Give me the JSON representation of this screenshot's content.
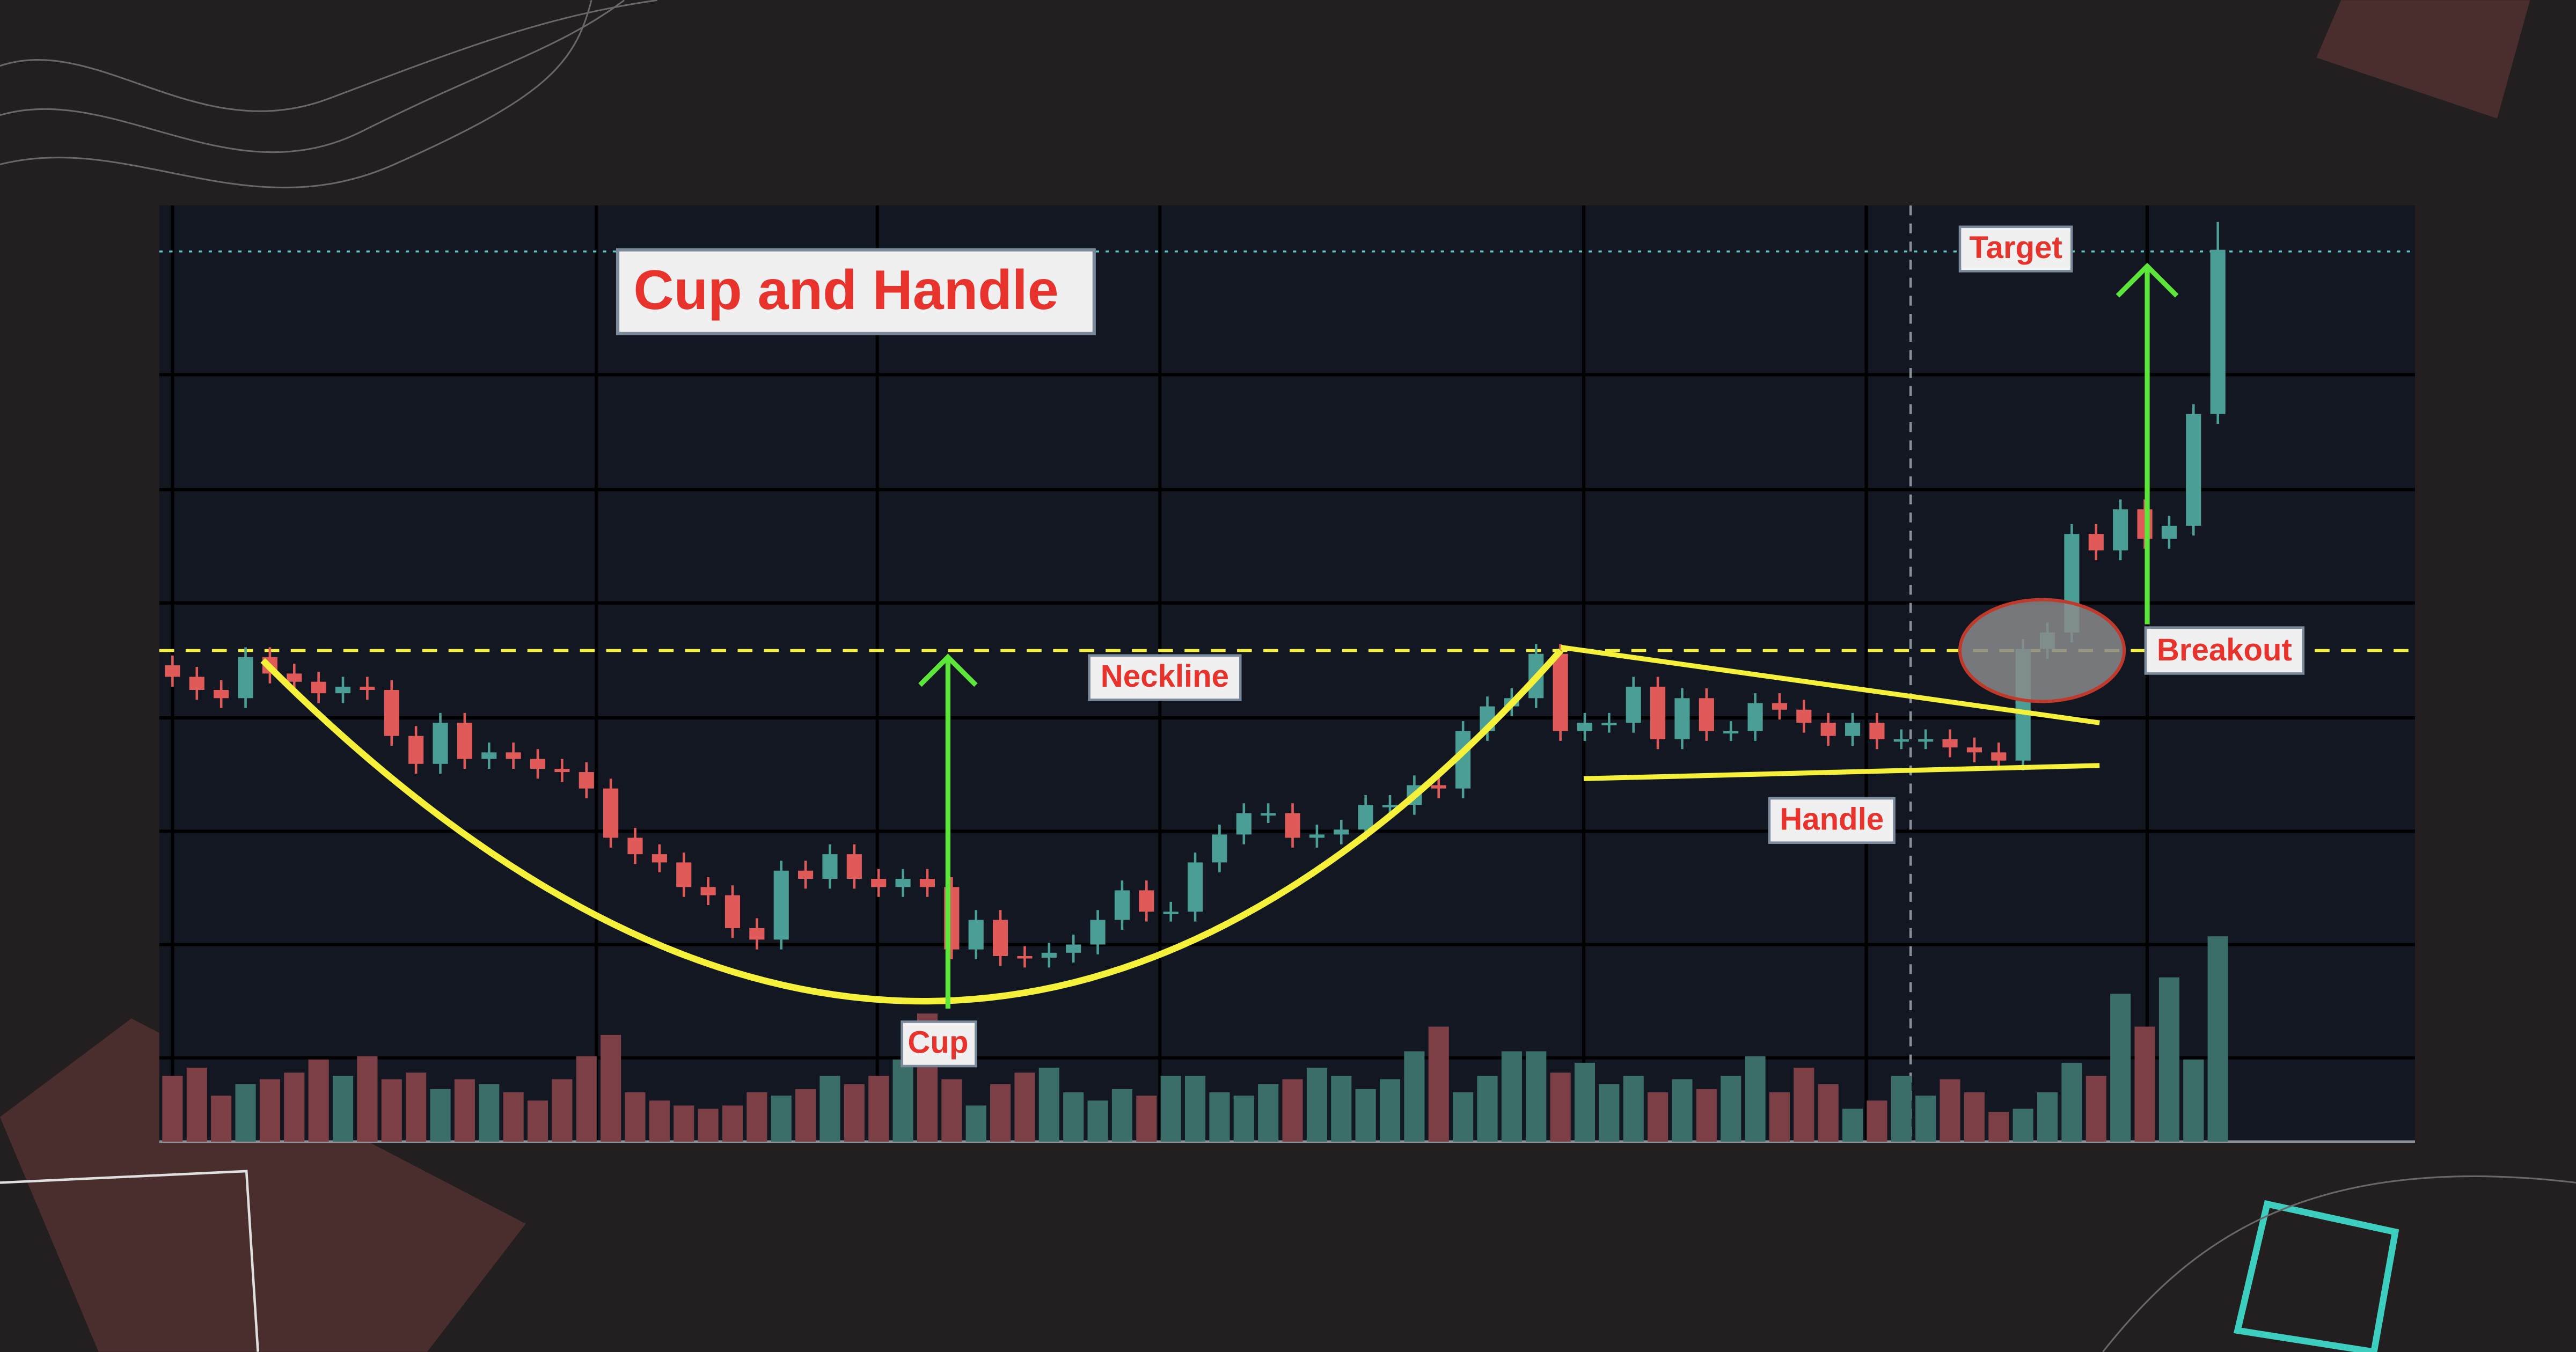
{
  "chart_data": {
    "type": "candlestick",
    "title": "Cup and Handle",
    "annotations": {
      "neckline": "Neckline",
      "cup": "Cup",
      "handle": "Handle",
      "breakout": "Breakout",
      "target": "Target"
    },
    "neckline": 299,
    "target": 542,
    "ylim": [
      0,
      570
    ],
    "y2lim": [
      0,
      570
    ],
    "up_color": "#4a9e96",
    "down_color": "#e05a5a",
    "up_volume_color": "#3b6e69",
    "down_volume_color": "#7b3f45",
    "open": [
      290,
      283,
      275,
      270,
      295,
      285,
      280,
      273,
      277,
      275,
      247,
      230,
      255,
      233,
      237,
      233,
      227,
      225,
      215,
      185,
      175,
      170,
      155,
      150,
      130,
      123,
      165,
      160,
      175,
      160,
      155,
      160,
      155,
      117,
      135,
      113,
      112,
      115,
      120,
      135,
      153,
      140,
      140,
      170,
      187,
      200,
      200,
      185,
      187,
      190,
      205,
      205,
      217,
      215,
      250,
      265,
      270,
      297,
      250,
      255,
      255,
      277,
      245,
      270,
      250,
      250,
      267,
      263,
      255,
      247,
      255,
      245,
      245,
      245,
      240,
      237,
      232,
      300,
      310,
      370,
      360,
      385,
      367,
      375,
      443
    ],
    "high": [
      296,
      289,
      281,
      301,
      301,
      291,
      286,
      283,
      283,
      281,
      253,
      261,
      261,
      243,
      243,
      239,
      233,
      231,
      221,
      191,
      181,
      176,
      161,
      156,
      136,
      171,
      171,
      181,
      181,
      166,
      166,
      166,
      161,
      141,
      141,
      119,
      121,
      126,
      141,
      159,
      159,
      146,
      176,
      193,
      206,
      206,
      206,
      193,
      196,
      211,
      211,
      223,
      223,
      256,
      271,
      276,
      303,
      303,
      261,
      261,
      283,
      283,
      276,
      276,
      256,
      273,
      273,
      269,
      261,
      261,
      261,
      251,
      251,
      251,
      246,
      243,
      306,
      316,
      376,
      376,
      391,
      391,
      381,
      449,
      560
    ],
    "low": [
      277,
      269,
      264,
      264,
      279,
      274,
      267,
      267,
      269,
      241,
      224,
      224,
      227,
      227,
      227,
      221,
      219,
      209,
      179,
      169,
      164,
      149,
      144,
      124,
      117,
      117,
      154,
      154,
      154,
      149,
      149,
      149,
      111,
      111,
      107,
      106,
      106,
      109,
      114,
      129,
      134,
      134,
      134,
      164,
      181,
      194,
      179,
      179,
      181,
      184,
      199,
      199,
      209,
      209,
      244,
      259,
      264,
      244,
      244,
      249,
      249,
      239,
      239,
      244,
      244,
      244,
      257,
      249,
      241,
      241,
      239,
      239,
      239,
      234,
      231,
      226,
      226,
      294,
      304,
      354,
      354,
      361,
      361,
      369,
      437
    ],
    "close": [
      283,
      275,
      270,
      295,
      285,
      280,
      273,
      277,
      275,
      247,
      230,
      255,
      233,
      237,
      233,
      227,
      225,
      215,
      185,
      175,
      170,
      155,
      150,
      130,
      123,
      165,
      160,
      175,
      160,
      155,
      160,
      155,
      117,
      135,
      113,
      112,
      115,
      120,
      135,
      153,
      140,
      140,
      170,
      187,
      200,
      200,
      185,
      187,
      190,
      205,
      205,
      217,
      215,
      250,
      265,
      270,
      297,
      250,
      255,
      255,
      277,
      245,
      270,
      250,
      250,
      267,
      263,
      255,
      247,
      255,
      245,
      245,
      245,
      240,
      237,
      232,
      300,
      310,
      370,
      360,
      385,
      367,
      375,
      443,
      543
    ],
    "volume": [
      40,
      45,
      28,
      35,
      38,
      42,
      50,
      40,
      52,
      38,
      42,
      32,
      38,
      35,
      30,
      25,
      38,
      52,
      65,
      30,
      25,
      22,
      20,
      22,
      30,
      28,
      32,
      40,
      35,
      40,
      50,
      78,
      38,
      22,
      35,
      42,
      45,
      30,
      25,
      32,
      28,
      40,
      40,
      30,
      28,
      35,
      38,
      45,
      40,
      32,
      38,
      55,
      70,
      30,
      40,
      55,
      55,
      42,
      48,
      35,
      40,
      30,
      38,
      32,
      40,
      52,
      30,
      45,
      35,
      20,
      25,
      40,
      28,
      38,
      30,
      18,
      20,
      30,
      48,
      40,
      90,
      70,
      100,
      50,
      125
    ]
  }
}
